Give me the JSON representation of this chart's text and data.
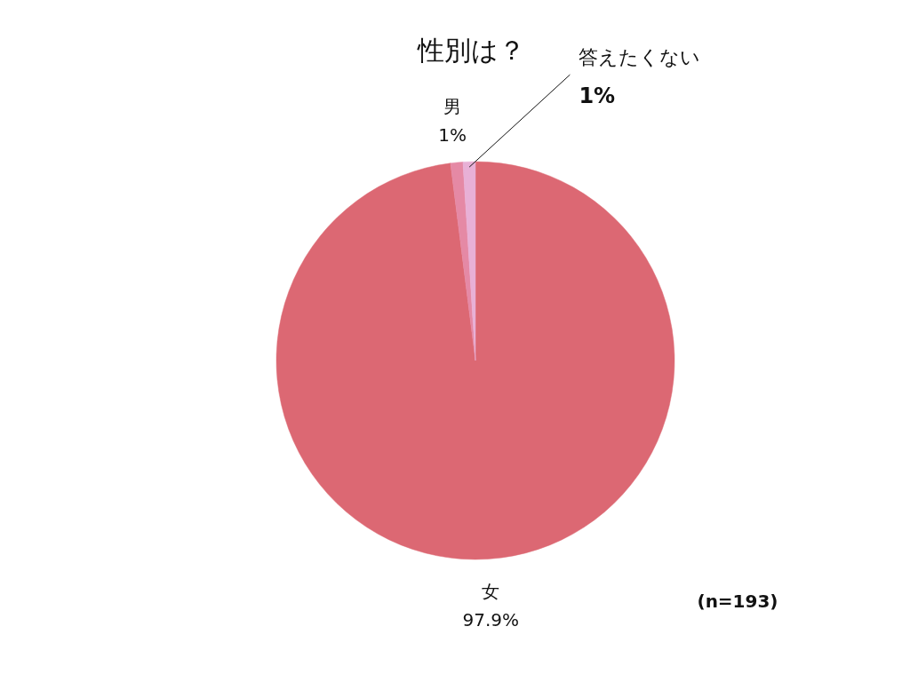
{
  "chart_data": {
    "type": "pie",
    "title": "性別は？",
    "categories": [
      "女",
      "男",
      "答えたくない"
    ],
    "values": [
      97.9,
      1,
      1
    ],
    "colors": [
      "#dc6873",
      "#e589a5",
      "#e8b0d6"
    ],
    "value_labels": [
      "97.9%",
      "1%",
      "1%"
    ],
    "annotations": [
      "(n=193)"
    ]
  }
}
